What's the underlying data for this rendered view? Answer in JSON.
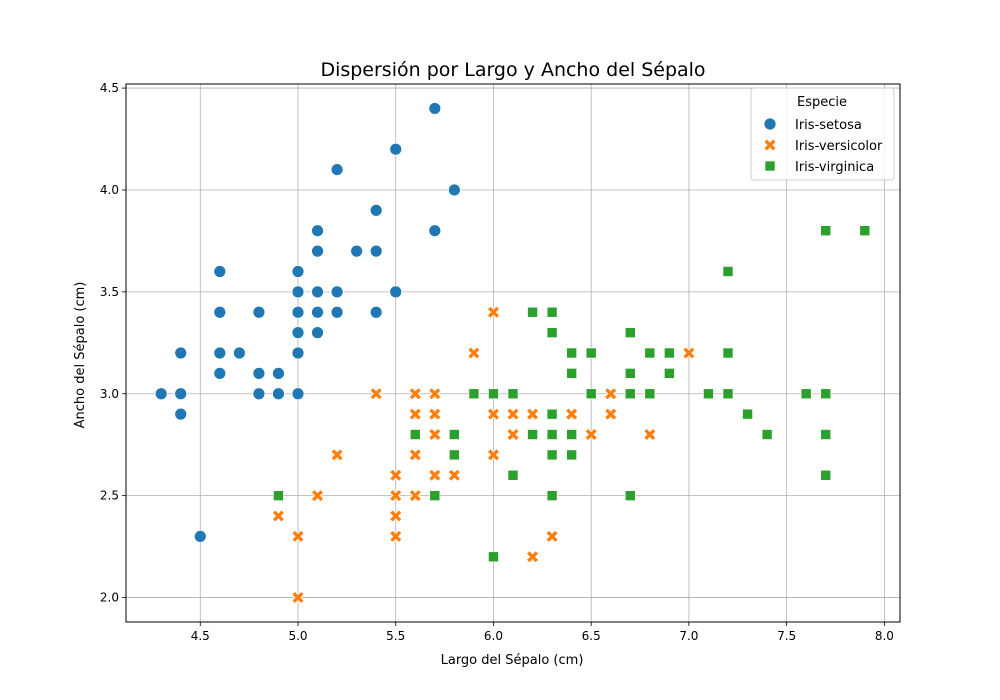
{
  "chart_data": {
    "type": "scatter",
    "title": "Dispersión por Largo y Ancho del Sépalo",
    "xlabel": "Largo del Sépalo (cm)",
    "ylabel": "Ancho del Sépalo (cm)",
    "xlim": [
      4.12,
      8.08
    ],
    "ylim": [
      1.88,
      4.52
    ],
    "xticks": [
      "4.5",
      "5.0",
      "5.5",
      "6.0",
      "6.5",
      "7.0",
      "7.5",
      "8.0"
    ],
    "yticks": [
      "2.0",
      "2.5",
      "3.0",
      "3.5",
      "4.0",
      "4.5"
    ],
    "grid": true,
    "legend": {
      "title": "Especie",
      "position": "top-right"
    },
    "series": [
      {
        "name": "Iris-setosa",
        "marker": "circle",
        "color": "#1f77b4",
        "points": [
          [
            5.1,
            3.5
          ],
          [
            4.9,
            3.0
          ],
          [
            4.7,
            3.2
          ],
          [
            4.6,
            3.1
          ],
          [
            5.0,
            3.6
          ],
          [
            5.4,
            3.9
          ],
          [
            4.6,
            3.4
          ],
          [
            5.0,
            3.4
          ],
          [
            4.4,
            2.9
          ],
          [
            4.9,
            3.1
          ],
          [
            5.4,
            3.7
          ],
          [
            4.8,
            3.4
          ],
          [
            4.8,
            3.0
          ],
          [
            4.3,
            3.0
          ],
          [
            5.8,
            4.0
          ],
          [
            5.7,
            4.4
          ],
          [
            5.4,
            3.9
          ],
          [
            5.1,
            3.5
          ],
          [
            5.7,
            3.8
          ],
          [
            5.1,
            3.8
          ],
          [
            5.4,
            3.4
          ],
          [
            5.1,
            3.7
          ],
          [
            4.6,
            3.6
          ],
          [
            5.1,
            3.3
          ],
          [
            4.8,
            3.4
          ],
          [
            5.0,
            3.0
          ],
          [
            5.0,
            3.4
          ],
          [
            5.2,
            3.5
          ],
          [
            5.2,
            3.4
          ],
          [
            4.7,
            3.2
          ],
          [
            4.8,
            3.1
          ],
          [
            5.4,
            3.4
          ],
          [
            5.2,
            4.1
          ],
          [
            5.5,
            4.2
          ],
          [
            4.9,
            3.1
          ],
          [
            5.0,
            3.2
          ],
          [
            5.5,
            3.5
          ],
          [
            4.9,
            3.1
          ],
          [
            4.4,
            3.0
          ],
          [
            5.1,
            3.4
          ],
          [
            5.0,
            3.5
          ],
          [
            4.5,
            2.3
          ],
          [
            4.4,
            3.2
          ],
          [
            5.0,
            3.5
          ],
          [
            5.1,
            3.8
          ],
          [
            4.8,
            3.0
          ],
          [
            5.1,
            3.8
          ],
          [
            4.6,
            3.2
          ],
          [
            5.3,
            3.7
          ],
          [
            5.0,
            3.3
          ]
        ]
      },
      {
        "name": "Iris-versicolor",
        "marker": "x",
        "color": "#ff7f0e",
        "points": [
          [
            7.0,
            3.2
          ],
          [
            6.4,
            3.2
          ],
          [
            6.9,
            3.1
          ],
          [
            5.5,
            2.3
          ],
          [
            6.5,
            2.8
          ],
          [
            5.7,
            2.8
          ],
          [
            6.3,
            3.3
          ],
          [
            4.9,
            2.4
          ],
          [
            6.6,
            2.9
          ],
          [
            5.2,
            2.7
          ],
          [
            5.0,
            2.0
          ],
          [
            5.9,
            3.0
          ],
          [
            6.0,
            2.2
          ],
          [
            6.1,
            2.9
          ],
          [
            5.6,
            2.9
          ],
          [
            6.7,
            3.1
          ],
          [
            5.6,
            3.0
          ],
          [
            5.8,
            2.7
          ],
          [
            6.2,
            2.2
          ],
          [
            5.6,
            2.5
          ],
          [
            5.9,
            3.2
          ],
          [
            6.1,
            2.8
          ],
          [
            6.3,
            2.5
          ],
          [
            6.1,
            2.8
          ],
          [
            6.4,
            2.9
          ],
          [
            6.6,
            3.0
          ],
          [
            6.8,
            2.8
          ],
          [
            6.7,
            3.0
          ],
          [
            6.0,
            2.9
          ],
          [
            5.7,
            2.6
          ],
          [
            5.5,
            2.4
          ],
          [
            5.5,
            2.4
          ],
          [
            5.8,
            2.7
          ],
          [
            6.0,
            2.7
          ],
          [
            5.4,
            3.0
          ],
          [
            6.0,
            3.4
          ],
          [
            6.7,
            3.1
          ],
          [
            6.3,
            2.3
          ],
          [
            5.6,
            3.0
          ],
          [
            5.5,
            2.5
          ],
          [
            5.5,
            2.6
          ],
          [
            6.1,
            3.0
          ],
          [
            5.8,
            2.6
          ],
          [
            5.0,
            2.3
          ],
          [
            5.6,
            2.7
          ],
          [
            5.7,
            3.0
          ],
          [
            5.7,
            2.9
          ],
          [
            6.2,
            2.9
          ],
          [
            5.1,
            2.5
          ],
          [
            5.7,
            2.8
          ]
        ]
      },
      {
        "name": "Iris-virginica",
        "marker": "square",
        "color": "#2ca02c",
        "points": [
          [
            6.3,
            3.3
          ],
          [
            5.8,
            2.7
          ],
          [
            7.1,
            3.0
          ],
          [
            6.3,
            2.9
          ],
          [
            6.5,
            3.0
          ],
          [
            7.6,
            3.0
          ],
          [
            4.9,
            2.5
          ],
          [
            7.3,
            2.9
          ],
          [
            6.7,
            2.5
          ],
          [
            7.2,
            3.6
          ],
          [
            6.5,
            3.2
          ],
          [
            6.4,
            2.7
          ],
          [
            6.8,
            3.0
          ],
          [
            5.7,
            2.5
          ],
          [
            5.8,
            2.8
          ],
          [
            6.4,
            3.2
          ],
          [
            6.5,
            3.0
          ],
          [
            7.7,
            3.8
          ],
          [
            7.7,
            2.6
          ],
          [
            6.0,
            2.2
          ],
          [
            6.9,
            3.2
          ],
          [
            5.6,
            2.8
          ],
          [
            7.7,
            2.8
          ],
          [
            6.3,
            2.7
          ],
          [
            6.7,
            3.3
          ],
          [
            7.2,
            3.2
          ],
          [
            6.2,
            2.8
          ],
          [
            6.1,
            3.0
          ],
          [
            6.4,
            2.8
          ],
          [
            7.2,
            3.0
          ],
          [
            7.4,
            2.8
          ],
          [
            7.9,
            3.8
          ],
          [
            6.4,
            2.8
          ],
          [
            6.3,
            2.8
          ],
          [
            6.1,
            2.6
          ],
          [
            7.7,
            3.0
          ],
          [
            6.3,
            3.4
          ],
          [
            6.4,
            3.1
          ],
          [
            6.0,
            3.0
          ],
          [
            6.9,
            3.1
          ],
          [
            6.7,
            3.1
          ],
          [
            6.9,
            3.1
          ],
          [
            5.8,
            2.7
          ],
          [
            6.8,
            3.2
          ],
          [
            6.7,
            3.3
          ],
          [
            6.7,
            3.0
          ],
          [
            6.3,
            2.5
          ],
          [
            6.5,
            3.0
          ],
          [
            6.2,
            3.4
          ],
          [
            5.9,
            3.0
          ]
        ]
      }
    ]
  }
}
